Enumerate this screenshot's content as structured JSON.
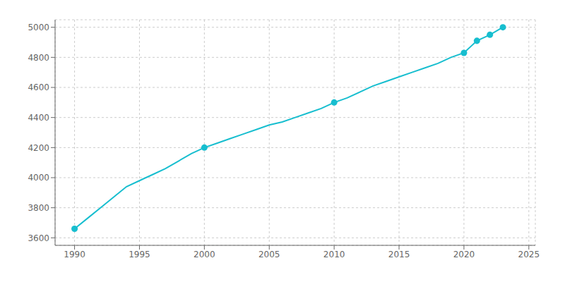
{
  "chart_data": {
    "type": "line",
    "x": [
      1990,
      1991,
      1992,
      1993,
      1994,
      1995,
      1996,
      1997,
      1998,
      1999,
      2000,
      2001,
      2002,
      2003,
      2004,
      2005,
      2006,
      2007,
      2008,
      2009,
      2010,
      2011,
      2012,
      2013,
      2014,
      2015,
      2016,
      2017,
      2018,
      2019,
      2020,
      2021,
      2022,
      2023
    ],
    "series": [
      {
        "type": "line",
        "color": "#17BECF",
        "values": [
          3660,
          3730,
          3800,
          3870,
          3940,
          3980,
          4020,
          4060,
          4110,
          4160,
          4200,
          4230,
          4260,
          4290,
          4320,
          4350,
          4370,
          4400,
          4430,
          4460,
          4500,
          4530,
          4570,
          4610,
          4640,
          4670,
          4700,
          4730,
          4760,
          4800,
          4830,
          4910,
          4950,
          5000
        ]
      },
      {
        "type": "scatter",
        "color": "#17BECF",
        "x": [
          1990,
          2000,
          2010,
          2020,
          2021,
          2022,
          2023
        ],
        "values": [
          3660,
          4200,
          4500,
          4830,
          4910,
          4950,
          5000
        ]
      }
    ],
    "xlim": [
      1988.5,
      2025.5
    ],
    "ylim": [
      3550,
      5050
    ],
    "xticks": [
      1990,
      1995,
      2000,
      2005,
      2010,
      2015,
      2020,
      2025
    ],
    "yticks": [
      3600,
      3800,
      4000,
      4200,
      4400,
      4600,
      4800,
      5000
    ],
    "grid": true
  }
}
